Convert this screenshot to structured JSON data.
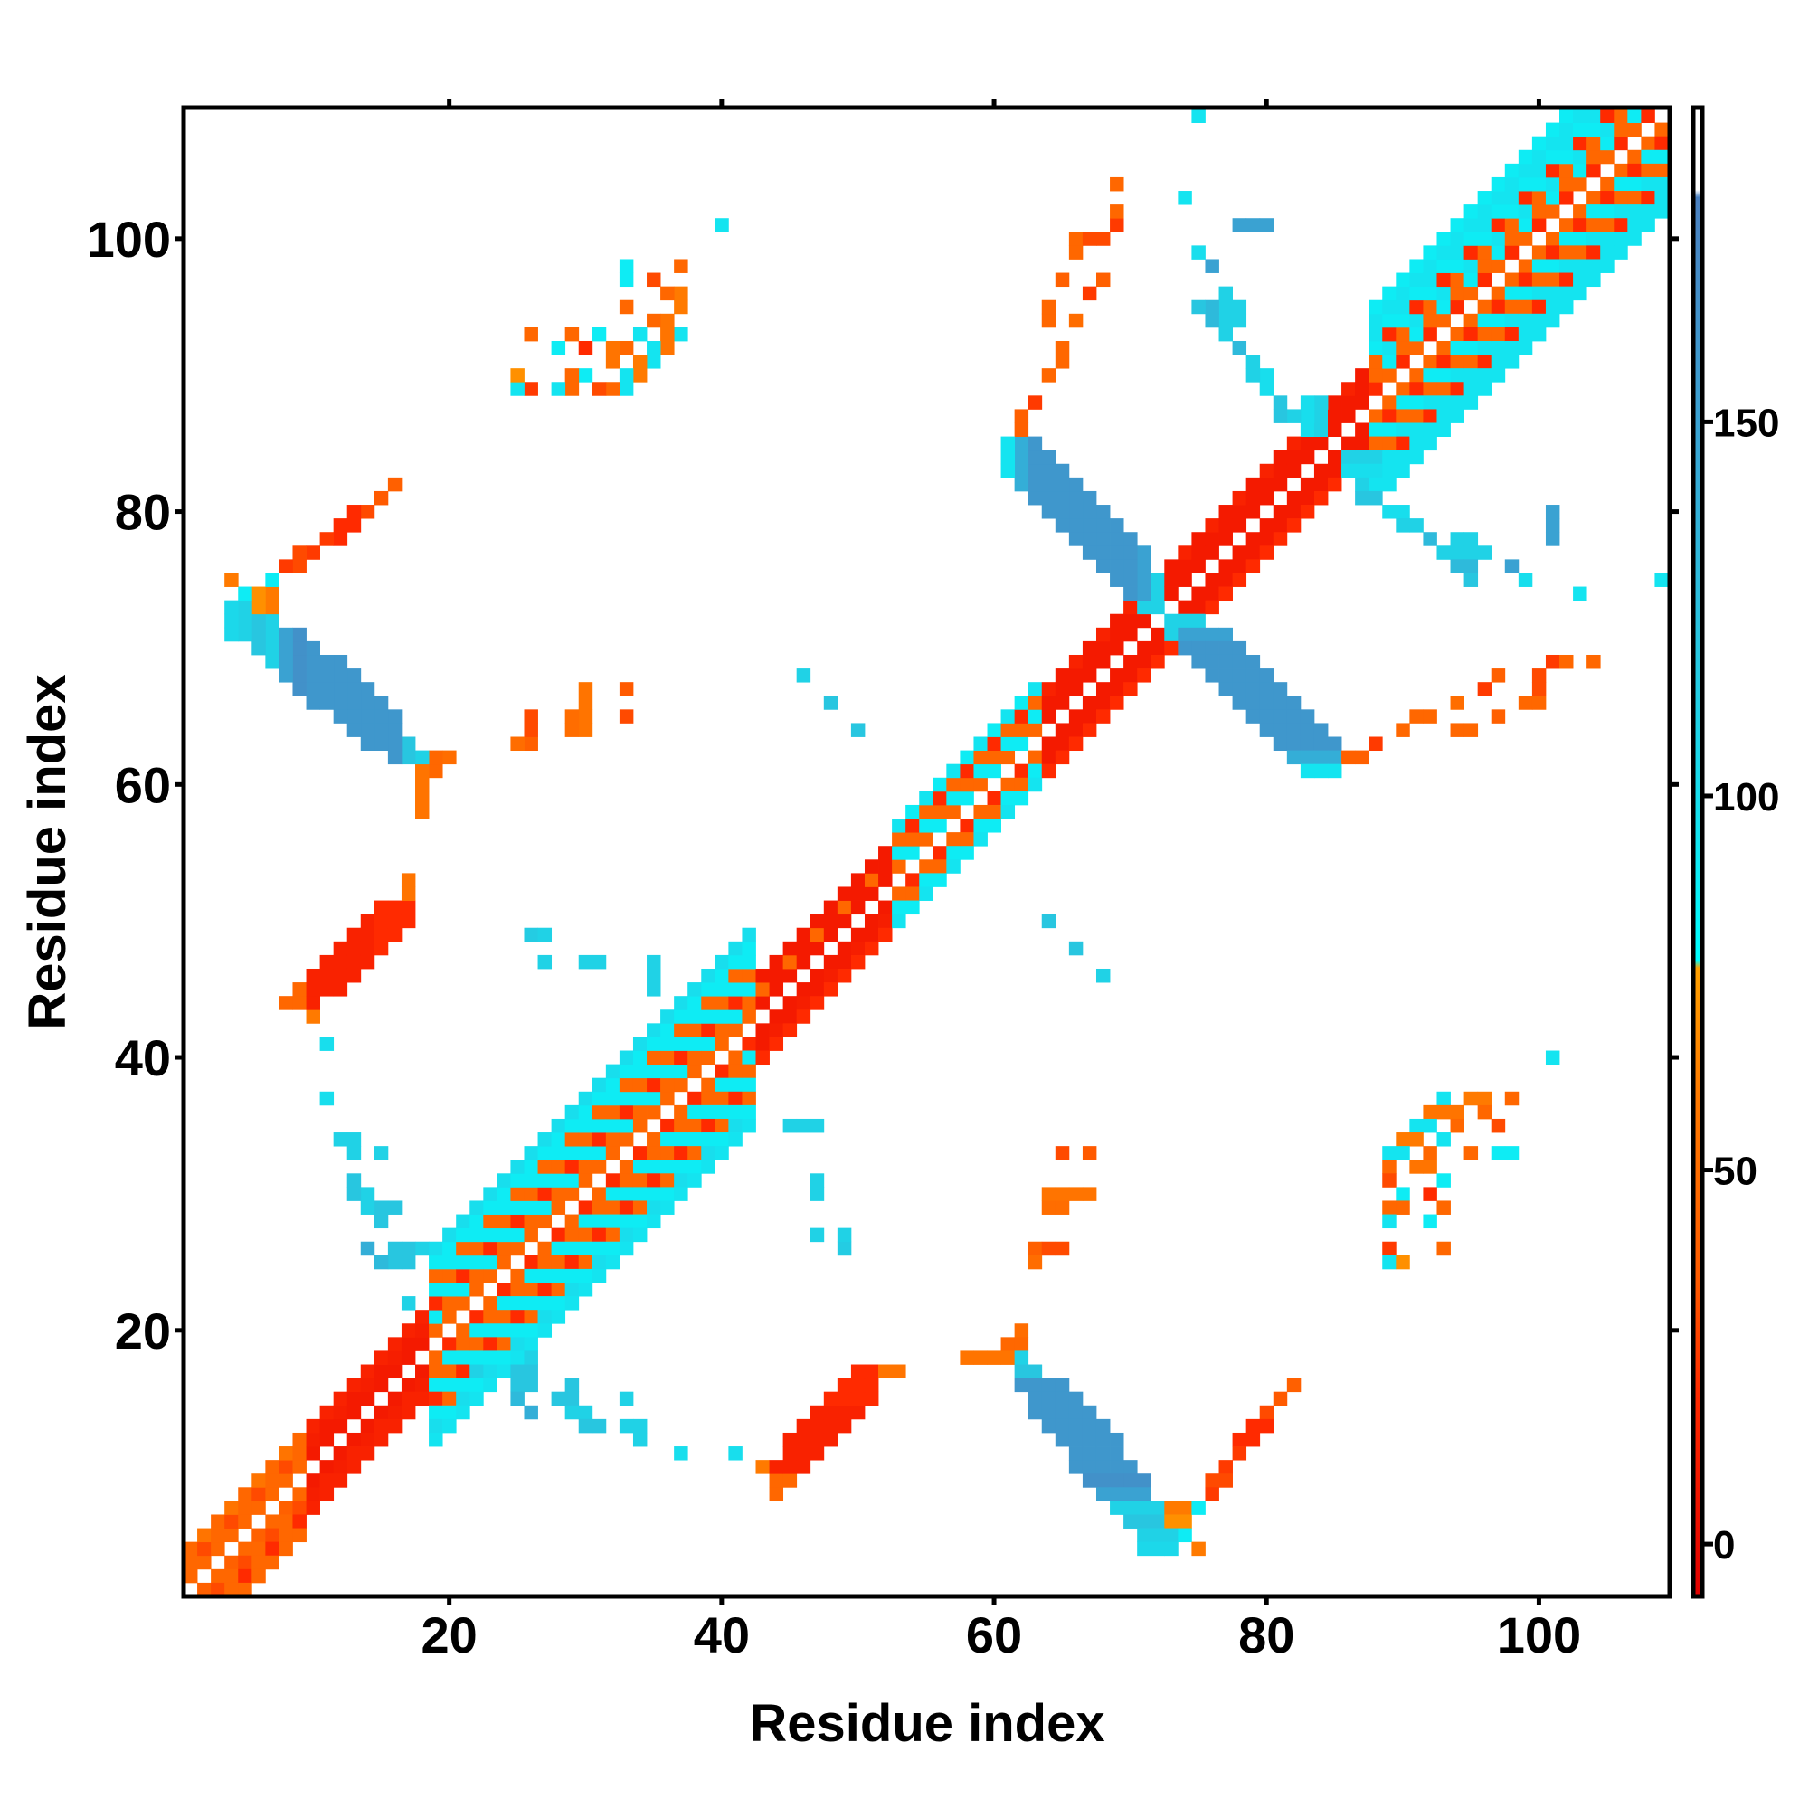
{
  "chart_data": {
    "type": "heatmap",
    "title": "",
    "xlabel": "Residue index",
    "ylabel": "Residue index",
    "n_residues": 109,
    "xlim": [
      0.5,
      109.6
    ],
    "ylim": [
      0.5,
      109.6
    ],
    "xticks": [
      20,
      40,
      60,
      80,
      100
    ],
    "yticks": [
      20,
      40,
      60,
      80,
      100
    ],
    "grid": false,
    "colorbar": {
      "range": [
        -7,
        192
      ],
      "ticks": [
        0,
        50,
        100,
        150
      ],
      "stops": [
        {
          "v": -7,
          "color": "#e00000"
        },
        {
          "v": 20,
          "color": "#ff2a00"
        },
        {
          "v": 35,
          "color": "#ff5a00"
        },
        {
          "v": 60,
          "color": "#ff7a00"
        },
        {
          "v": 77,
          "color": "#ffa000"
        },
        {
          "v": 78,
          "color": "#00ffff"
        },
        {
          "v": 95,
          "color": "#14e4f0"
        },
        {
          "v": 120,
          "color": "#28c6e0"
        },
        {
          "v": 150,
          "color": "#3aa2d2"
        },
        {
          "v": 180,
          "color": "#4a80c0"
        },
        {
          "v": 181,
          "color": "#ffffff"
        },
        {
          "v": 192,
          "color": "#ffffff"
        }
      ]
    },
    "diagonal_bands": [
      {
        "start": 1,
        "end": 9,
        "offsets": [
          [
            1,
            45,
            45
          ],
          [
            2,
            45,
            30
          ],
          [
            3,
            45,
            55
          ],
          [
            -1,
            45,
            40
          ],
          [
            -2,
            30,
            45
          ],
          [
            -3,
            20,
            45
          ],
          [
            -4,
            45,
            45
          ]
        ]
      },
      {
        "start": 10,
        "end": 18,
        "offsets": [
          [
            1,
            10,
            10
          ],
          [
            2,
            10,
            12
          ],
          [
            3,
            15,
            15
          ],
          [
            -1,
            10,
            10
          ],
          [
            -2,
            15,
            12
          ],
          [
            -3,
            15,
            15
          ]
        ]
      },
      {
        "start": 19,
        "end": 42,
        "offsets": [
          [
            1,
            45,
            45
          ],
          [
            2,
            90,
            45
          ],
          [
            3,
            20,
            90
          ],
          [
            4,
            90,
            45
          ],
          [
            5,
            45,
            90
          ],
          [
            6,
            90,
            90
          ],
          [
            7,
            100,
            100
          ],
          [
            -1,
            45,
            20
          ],
          [
            -2,
            45,
            90
          ],
          [
            -3,
            90,
            45
          ],
          [
            -4,
            20,
            90
          ],
          [
            -5,
            90,
            45
          ],
          [
            -6,
            100,
            90
          ],
          [
            -7,
            95,
            95
          ]
        ]
      },
      {
        "start": 43,
        "end": 52,
        "offsets": [
          [
            1,
            10,
            10
          ],
          [
            2,
            45,
            10
          ],
          [
            3,
            10,
            10
          ],
          [
            -1,
            10,
            10
          ],
          [
            -2,
            10,
            12
          ],
          [
            -3,
            20,
            20
          ]
        ]
      },
      {
        "start": 53,
        "end": 63,
        "offsets": [
          [
            1,
            45,
            90
          ],
          [
            2,
            90,
            45
          ],
          [
            3,
            45,
            20
          ],
          [
            4,
            95,
            90
          ],
          [
            -1,
            45,
            20
          ],
          [
            -2,
            90,
            45
          ],
          [
            -3,
            95,
            90
          ]
        ]
      },
      {
        "start": 64,
        "end": 87,
        "offsets": [
          [
            1,
            10,
            10
          ],
          [
            2,
            10,
            10
          ],
          [
            3,
            10,
            15
          ],
          [
            -1,
            10,
            10
          ],
          [
            -2,
            10,
            10
          ],
          [
            -3,
            20,
            20
          ]
        ]
      },
      {
        "start": 88,
        "end": 109,
        "offsets": [
          [
            1,
            45,
            20
          ],
          [
            2,
            90,
            45
          ],
          [
            3,
            95,
            45
          ],
          [
            4,
            20,
            90
          ],
          [
            5,
            90,
            95
          ],
          [
            6,
            95,
            95
          ],
          [
            7,
            90,
            90
          ],
          [
            -1,
            45,
            45
          ],
          [
            -2,
            20,
            90
          ],
          [
            -3,
            90,
            45
          ],
          [
            -4,
            45,
            95
          ],
          [
            -5,
            95,
            20
          ],
          [
            -6,
            95,
            95
          ],
          [
            -7,
            95,
            95
          ]
        ]
      }
    ],
    "patches_mirrored": [
      [
        [
          8,
          44,
          44,
          45
        ],
        [
          9,
          44,
          45,
          45
        ],
        [
          10,
          43,
          43,
          60
        ],
        [
          10,
          44,
          46,
          15
        ],
        [
          11,
          45,
          47,
          15
        ],
        [
          12,
          45,
          48,
          15
        ],
        [
          13,
          46,
          49,
          15
        ],
        [
          14,
          47,
          50,
          15
        ],
        [
          15,
          48,
          51,
          20
        ],
        [
          16,
          49,
          51,
          20
        ],
        [
          17,
          50,
          51,
          20
        ],
        [
          17,
          52,
          53,
          55
        ]
      ],
      [
        [
          20,
          62,
          62,
          50
        ],
        [
          19,
          61,
          62,
          45
        ],
        [
          18,
          58,
          61,
          55
        ],
        [
          18,
          62,
          62,
          110
        ],
        [
          17,
          62,
          63,
          120
        ],
        [
          16,
          62,
          65,
          160
        ],
        [
          15,
          63,
          66,
          160
        ],
        [
          14,
          63,
          67,
          160
        ],
        [
          13,
          64,
          68,
          160
        ],
        [
          12,
          65,
          69,
          160
        ],
        [
          11,
          66,
          69,
          160
        ],
        [
          10,
          66,
          70,
          160
        ],
        [
          9,
          67,
          71,
          165
        ],
        [
          8,
          68,
          71,
          150
        ],
        [
          7,
          69,
          72,
          110
        ],
        [
          7,
          73,
          74,
          60
        ],
        [
          6,
          70,
          72,
          120
        ],
        [
          6,
          73,
          74,
          70
        ],
        [
          5,
          71,
          73,
          110
        ],
        [
          5,
          74,
          74,
          90
        ],
        [
          4,
          71,
          73,
          105
        ],
        [
          4,
          75,
          75,
          60
        ]
      ],
      [
        [
          16,
          82,
          82,
          40
        ],
        [
          15,
          81,
          81,
          35
        ],
        [
          14,
          80,
          80,
          30
        ],
        [
          13,
          79,
          80,
          20
        ],
        [
          12,
          78,
          79,
          20
        ],
        [
          11,
          78,
          78,
          25
        ],
        [
          10,
          77,
          77,
          25
        ],
        [
          9,
          76,
          77,
          30
        ],
        [
          8,
          76,
          76,
          25
        ],
        [
          7,
          75,
          75,
          90
        ]
      ],
      [
        [
          73,
          71,
          73,
          110
        ],
        [
          72,
          73,
          75,
          110
        ],
        [
          71,
          74,
          77,
          150
        ],
        [
          70,
          74,
          78,
          160
        ],
        [
          69,
          75,
          79,
          160
        ],
        [
          68,
          76,
          80,
          160
        ],
        [
          67,
          77,
          81,
          160
        ],
        [
          66,
          78,
          82,
          160
        ],
        [
          65,
          79,
          83,
          160
        ],
        [
          64,
          80,
          84,
          160
        ],
        [
          63,
          81,
          85,
          160
        ],
        [
          62,
          82,
          85,
          140
        ],
        [
          62,
          86,
          87,
          40
        ],
        [
          61,
          83,
          85,
          95
        ],
        [
          63,
          88,
          88,
          25
        ],
        [
          64,
          90,
          90,
          45
        ],
        [
          65,
          91,
          92,
          45
        ],
        [
          66,
          94,
          94,
          50
        ],
        [
          64,
          94,
          95,
          45
        ],
        [
          67,
          96,
          96,
          25
        ],
        [
          68,
          97,
          97,
          40
        ],
        [
          69,
          101,
          101,
          25
        ],
        [
          69,
          104,
          104,
          45
        ],
        [
          65,
          97,
          97,
          40
        ],
        [
          66,
          99,
          100,
          45
        ]
      ],
      [
        [
          84,
          86,
          88,
          110
        ],
        [
          83,
          86,
          88,
          100
        ],
        [
          82,
          87,
          87,
          110
        ],
        [
          81,
          87,
          88,
          120
        ],
        [
          80,
          89,
          90,
          100
        ],
        [
          79,
          90,
          91,
          110
        ],
        [
          78,
          92,
          92,
          130
        ],
        [
          78,
          94,
          95,
          110
        ],
        [
          77,
          93,
          96,
          110
        ],
        [
          76,
          94,
          95,
          130
        ],
        [
          76,
          98,
          98,
          150
        ],
        [
          75,
          95,
          95,
          120
        ],
        [
          75,
          99,
          99,
          100
        ],
        [
          74,
          103,
          103,
          95
        ]
      ],
      [
        [
          40,
          101,
          101,
          95
        ],
        [
          37,
          93,
          93,
          95
        ],
        [
          37,
          95,
          96,
          60
        ],
        [
          37,
          98,
          98,
          45
        ],
        [
          36,
          92,
          94,
          55
        ],
        [
          36,
          96,
          96,
          45
        ],
        [
          35,
          91,
          92,
          95
        ],
        [
          35,
          94,
          94,
          45
        ],
        [
          35,
          97,
          97,
          30
        ],
        [
          34,
          90,
          91,
          60
        ],
        [
          34,
          93,
          93,
          95
        ],
        [
          33,
          89,
          90,
          95
        ],
        [
          33,
          92,
          92,
          45
        ],
        [
          33,
          95,
          95,
          45
        ],
        [
          33,
          97,
          98,
          90
        ],
        [
          32,
          89,
          89,
          45
        ],
        [
          32,
          91,
          92,
          55
        ],
        [
          31,
          89,
          89,
          30
        ],
        [
          31,
          93,
          93,
          90
        ],
        [
          30,
          90,
          90,
          90
        ],
        [
          30,
          92,
          92,
          20
        ],
        [
          29,
          89,
          90,
          45
        ],
        [
          29,
          93,
          93,
          45
        ],
        [
          28,
          89,
          89,
          95
        ],
        [
          28,
          92,
          92,
          90
        ],
        [
          26,
          89,
          89,
          25
        ],
        [
          26,
          93,
          93,
          45
        ],
        [
          25,
          89,
          89,
          95
        ],
        [
          25,
          90,
          90,
          70
        ]
      ],
      [
        [
          18,
          26,
          26,
          110
        ],
        [
          17,
          22,
          22,
          110
        ],
        [
          17,
          25,
          26,
          120
        ],
        [
          16,
          25,
          26,
          120
        ],
        [
          16,
          29,
          29,
          120
        ],
        [
          15,
          25,
          25,
          130
        ],
        [
          15,
          28,
          29,
          120
        ],
        [
          15,
          33,
          33,
          110
        ],
        [
          14,
          26,
          26,
          140
        ],
        [
          14,
          29,
          30,
          110
        ],
        [
          13,
          30,
          31,
          120
        ],
        [
          13,
          33,
          34,
          110
        ],
        [
          12,
          34,
          34,
          110
        ],
        [
          11,
          37,
          37,
          100
        ],
        [
          11,
          41,
          41,
          100
        ]
      ],
      [
        [
          33,
          65,
          65,
          30
        ],
        [
          33,
          67,
          67,
          35
        ],
        [
          30,
          64,
          67,
          55
        ],
        [
          29,
          64,
          65,
          50
        ],
        [
          26,
          63,
          63,
          40
        ],
        [
          26,
          64,
          65,
          30
        ],
        [
          25,
          63,
          63,
          50
        ]
      ],
      [
        [
          35,
          45,
          47,
          110
        ],
        [
          31,
          47,
          47,
          110
        ],
        [
          30,
          47,
          47,
          110
        ],
        [
          27,
          47,
          47,
          110
        ],
        [
          26,
          49,
          49,
          115
        ],
        [
          27,
          49,
          49,
          110
        ]
      ],
      [
        [
          50,
          64,
          64,
          120
        ],
        [
          48,
          66,
          66,
          120
        ],
        [
          46,
          68,
          68,
          110
        ]
      ],
      [
        [
          109,
          75,
          75,
          95
        ],
        [
          102,
          69,
          69,
          45
        ],
        [
          101,
          78,
          80,
          150
        ],
        [
          100,
          67,
          68,
          30
        ]
      ]
    ]
  }
}
